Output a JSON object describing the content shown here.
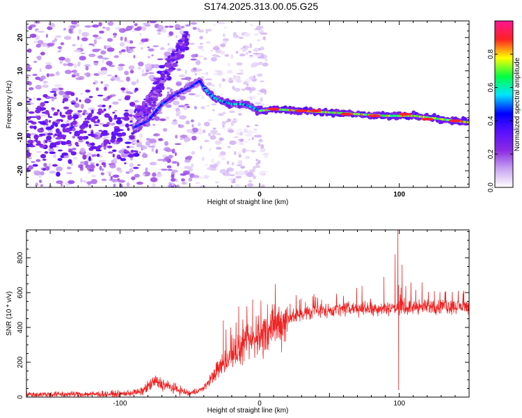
{
  "title": "S174.2025.313.00.05.G25",
  "chart_data": [
    {
      "type": "heatmap",
      "title": "S174.2025.313.00.05.G25",
      "xlabel": "Height of straight line (km)",
      "ylabel": "Frequency (Hz)",
      "xlim": [
        -167,
        150
      ],
      "ylim": [
        -25,
        25
      ],
      "x_ticks": [
        -100,
        0,
        100
      ],
      "y_ticks": [
        -20,
        -10,
        0,
        10,
        20
      ],
      "colorbar": {
        "label": "Normalized spectral amplitude",
        "range": [
          0,
          1
        ],
        "ticks": [
          "0.0",
          "0.2",
          "0.4",
          "0.6",
          "0.8"
        ],
        "stops": [
          "#ffffff",
          "#c9a4f2",
          "#8a2be2",
          "#5a10ff",
          "#0000ff",
          "#00e5ff",
          "#00ff40",
          "#ffff00",
          "#ff2222",
          "#ff1493"
        ]
      },
      "ridge": {
        "x": [
          -90,
          -80,
          -70,
          -60,
          -50,
          -43,
          -38,
          -33,
          -28,
          -20,
          -12,
          -5,
          0,
          10,
          30,
          50,
          70,
          90,
          110,
          130,
          150
        ],
        "freq": [
          -7,
          -5,
          0,
          3,
          5,
          7,
          4,
          2,
          1,
          0,
          0,
          -1,
          -2,
          -1.5,
          -2,
          -2.5,
          -3,
          -3.5,
          -3.5,
          -4.5,
          -5.5
        ]
      }
    },
    {
      "type": "line",
      "xlabel": "Height of straight line (km)",
      "ylabel": "SNR (10 * v/v)",
      "xlim": [
        -167,
        150
      ],
      "ylim": [
        0,
        960
      ],
      "x_ticks": [
        -100,
        0,
        100
      ],
      "y_ticks": [
        0,
        200,
        400,
        600,
        800
      ],
      "series": [
        {
          "name": "SNR",
          "color": "#ee2222",
          "trend_x": [
            -167,
            -100,
            -85,
            -75,
            -65,
            -50,
            -40,
            -30,
            -20,
            -10,
            0,
            10,
            20,
            30,
            50,
            70,
            90,
            110,
            130,
            150
          ],
          "trend_y": [
            15,
            18,
            30,
            90,
            60,
            20,
            50,
            160,
            240,
            300,
            350,
            400,
            450,
            480,
            500,
            510,
            510,
            515,
            520,
            520
          ],
          "spikes": [
            {
              "x": 99,
              "y": 960
            },
            {
              "x": 99.5,
              "y": 40
            },
            {
              "x": 97,
              "y": 820
            },
            {
              "x": 102,
              "y": 760
            },
            {
              "x": 89,
              "y": 690
            },
            {
              "x": -26,
              "y": 440
            },
            {
              "x": -15,
              "y": 520
            },
            {
              "x": -5,
              "y": 560
            }
          ]
        }
      ]
    }
  ]
}
